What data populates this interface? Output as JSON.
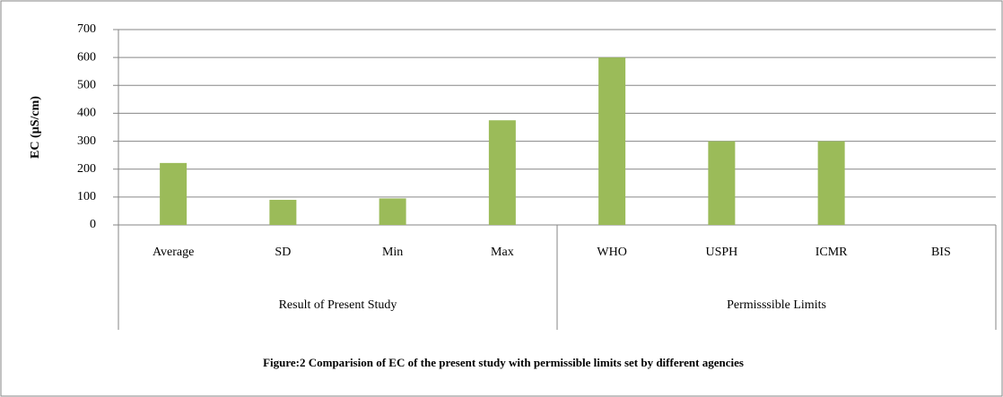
{
  "chart_data": {
    "type": "bar",
    "title": "Figure:2 Comparision of EC of the present study with permissible limits set by different agencies",
    "y_label": "EC (µS/cm)",
    "groups": [
      {
        "name": "Result of Present Study",
        "categories": [
          "Average",
          "SD",
          "Min",
          "Max"
        ]
      },
      {
        "name": "Permisssible Limits",
        "categories": [
          "WHO",
          "USPH",
          "ICMR",
          "BIS"
        ]
      }
    ],
    "values": [
      222,
      90,
      95,
      375,
      600,
      300,
      300,
      null
    ],
    "color": "#9bbb59",
    "ylim": [
      0,
      700
    ],
    "yticks": [
      0,
      100,
      200,
      300,
      400,
      500,
      600,
      700
    ],
    "grid": true
  }
}
